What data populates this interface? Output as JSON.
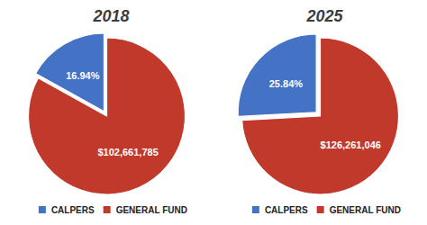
{
  "chart_data": [
    {
      "type": "pie",
      "title": "2018",
      "categories": [
        "CALPERS",
        "GENERAL FUND"
      ],
      "values": [
        16.94,
        83.06
      ],
      "value_labels": [
        "16.94%",
        null
      ],
      "annotations": [
        {
          "text": "$102,661,785",
          "category": "GENERAL FUND"
        }
      ],
      "colors": [
        "#4472C4",
        "#C0392B"
      ],
      "data_labels": true,
      "legend": "bottom"
    },
    {
      "type": "pie",
      "title": "2025",
      "categories": [
        "CALPERS",
        "GENERAL FUND"
      ],
      "values": [
        25.84,
        74.16
      ],
      "value_labels": [
        "25.84%",
        null
      ],
      "annotations": [
        {
          "text": "$126,261,046",
          "category": "GENERAL FUND"
        }
      ],
      "colors": [
        "#4472C4",
        "#C0392B"
      ],
      "data_labels": true,
      "legend": "bottom"
    }
  ]
}
